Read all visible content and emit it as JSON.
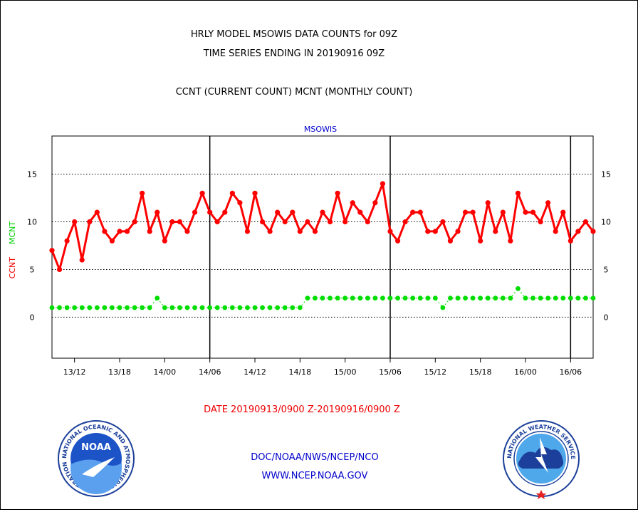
{
  "header": {
    "title_line1": "HRLY MODEL MSOWIS DATA COUNTS for 09Z",
    "title_line2": "TIME SERIES ENDING IN 20190916 09Z",
    "subtitle": "CCNT (CURRENT COUNT) MCNT (MONTHLY COUNT)"
  },
  "footer": {
    "date_range": "DATE 20190913/0900 Z-20190916/0900 Z",
    "org": "DOC/NOAA/NWS/NCEP/NCO",
    "url": "WWW.NCEP.NOAA.GOV"
  },
  "logos": {
    "noaa_text": "NOAA",
    "noaa_ring": "NATIONAL OCEANIC AND ATMOSPHERIC ADMINISTRATION · U.S. DEPARTMENT OF COMMERCE ·",
    "nws_ring": "NATIONAL WEATHER SERVICE"
  },
  "colors": {
    "ccnt": "#ff0000",
    "mcnt": "#00dd00",
    "text_blue": "#0000cc",
    "text_red": "#ee0000"
  },
  "chart_data": {
    "type": "line",
    "title": "MSOWIS",
    "ylabel_left": [
      "CCNT",
      "MCNT"
    ],
    "ylim": [
      -4.3,
      19
    ],
    "xlim": [
      0,
      72
    ],
    "yticks": [
      0,
      5,
      10,
      15
    ],
    "xtick_labels": [
      "13/12",
      "13/18",
      "14/00",
      "14/06",
      "14/12",
      "14/18",
      "15/00",
      "15/06",
      "15/12",
      "15/18",
      "16/00",
      "16/06"
    ],
    "xtick_hours": [
      3,
      9,
      15,
      21,
      27,
      33,
      39,
      45,
      51,
      57,
      63,
      69
    ],
    "day_boundaries_hours": [
      21,
      45,
      69
    ],
    "grid": "horizontal dotted",
    "series": [
      {
        "name": "CCNT",
        "x": [
          0,
          1,
          2,
          3,
          4,
          5,
          6,
          7,
          8,
          9,
          10,
          11,
          12,
          13,
          14,
          15,
          16,
          17,
          18,
          19,
          20,
          21,
          22,
          23,
          24,
          25,
          26,
          27,
          28,
          29,
          30,
          31,
          32,
          33,
          34,
          35,
          36,
          37,
          38,
          39,
          40,
          41,
          42,
          43,
          44,
          45,
          46,
          47,
          48,
          49,
          50,
          51,
          52,
          53,
          54,
          55,
          56,
          57,
          58,
          59,
          60,
          61,
          62,
          63,
          64,
          65,
          66,
          67,
          68,
          69,
          70,
          71,
          72
        ],
        "values": [
          7,
          5,
          8,
          10,
          6,
          10,
          11,
          9,
          8,
          9,
          9,
          10,
          13,
          9,
          11,
          8,
          10,
          10,
          9,
          11,
          13,
          11,
          10,
          11,
          13,
          12,
          9,
          13,
          10,
          9,
          11,
          10,
          11,
          9,
          10,
          9,
          11,
          10,
          13,
          10,
          12,
          11,
          10,
          12,
          14,
          9,
          8,
          10,
          11,
          11,
          9,
          9,
          10,
          8,
          9,
          11,
          11,
          8,
          12,
          9,
          11,
          8,
          13,
          11,
          11,
          10,
          12,
          9,
          11,
          8,
          9,
          10,
          9
        ]
      },
      {
        "name": "MCNT",
        "x": [
          0,
          1,
          2,
          3,
          4,
          5,
          6,
          7,
          8,
          9,
          10,
          11,
          12,
          13,
          14,
          15,
          16,
          17,
          18,
          19,
          20,
          21,
          22,
          23,
          24,
          25,
          26,
          27,
          28,
          29,
          30,
          31,
          32,
          33,
          34,
          35,
          36,
          37,
          38,
          39,
          40,
          41,
          42,
          43,
          44,
          45,
          46,
          47,
          48,
          49,
          50,
          51,
          52,
          53,
          54,
          55,
          56,
          57,
          58,
          59,
          60,
          61,
          62,
          63,
          64,
          65,
          66,
          67,
          68,
          69,
          70,
          71,
          72
        ],
        "values": [
          1,
          1,
          1,
          1,
          1,
          1,
          1,
          1,
          1,
          1,
          1,
          1,
          1,
          1,
          2,
          1,
          1,
          1,
          1,
          1,
          1,
          1,
          1,
          1,
          1,
          1,
          1,
          1,
          1,
          1,
          1,
          1,
          1,
          1,
          2,
          2,
          2,
          2,
          2,
          2,
          2,
          2,
          2,
          2,
          2,
          2,
          2,
          2,
          2,
          2,
          2,
          2,
          1,
          2,
          2,
          2,
          2,
          2,
          2,
          2,
          2,
          2,
          3,
          2,
          2,
          2,
          2,
          2,
          2,
          2,
          2,
          2,
          2
        ]
      }
    ]
  }
}
